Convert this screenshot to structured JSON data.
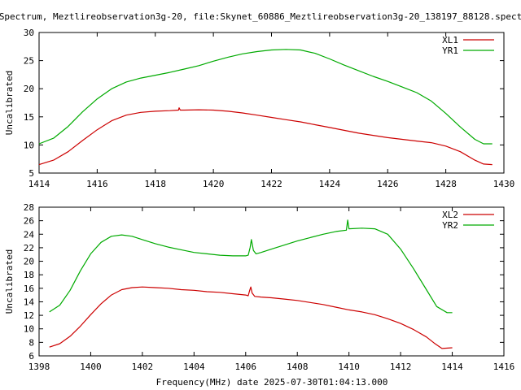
{
  "title": "Spectrum, Meztlireobservation3g-20, file:Skynet_60886_Meztlireobservation3g-20_138197_88128.spect",
  "footer": "Frequency(MHz) date 2025-07-30T01:04:13.000",
  "chart_data": [
    {
      "type": "line",
      "ylabel": "Uncalibrated",
      "xlim": [
        1414,
        1430
      ],
      "ylim": [
        5,
        30
      ],
      "xticks": [
        1414,
        1416,
        1418,
        1420,
        1422,
        1424,
        1426,
        1428,
        1430
      ],
      "yticks": [
        5,
        10,
        15,
        20,
        25,
        30
      ],
      "legend_position": "top-right",
      "series": [
        {
          "name": "XL1",
          "color": "#cc0000",
          "points": [
            [
              1414.0,
              6.5
            ],
            [
              1414.5,
              7.3
            ],
            [
              1415.0,
              8.8
            ],
            [
              1415.5,
              10.8
            ],
            [
              1416.0,
              12.7
            ],
            [
              1416.5,
              14.3
            ],
            [
              1417.0,
              15.3
            ],
            [
              1417.5,
              15.8
            ],
            [
              1418.0,
              16.0
            ],
            [
              1418.5,
              16.1
            ],
            [
              1418.8,
              16.2
            ],
            [
              1418.82,
              16.6
            ],
            [
              1418.86,
              16.2
            ],
            [
              1419.0,
              16.2
            ],
            [
              1419.5,
              16.25
            ],
            [
              1420.0,
              16.2
            ],
            [
              1420.5,
              16.0
            ],
            [
              1421.0,
              15.7
            ],
            [
              1421.5,
              15.3
            ],
            [
              1422.0,
              14.9
            ],
            [
              1422.5,
              14.5
            ],
            [
              1423.0,
              14.1
            ],
            [
              1423.5,
              13.6
            ],
            [
              1424.0,
              13.1
            ],
            [
              1424.5,
              12.6
            ],
            [
              1425.0,
              12.1
            ],
            [
              1425.5,
              11.7
            ],
            [
              1426.0,
              11.3
            ],
            [
              1426.5,
              11.0
            ],
            [
              1427.0,
              10.7
            ],
            [
              1427.5,
              10.4
            ],
            [
              1428.0,
              9.8
            ],
            [
              1428.5,
              8.8
            ],
            [
              1429.0,
              7.3
            ],
            [
              1429.3,
              6.6
            ],
            [
              1429.6,
              6.5
            ]
          ]
        },
        {
          "name": "YR1",
          "color": "#00aa00",
          "points": [
            [
              1414.0,
              10.2
            ],
            [
              1414.5,
              11.2
            ],
            [
              1415.0,
              13.3
            ],
            [
              1415.5,
              15.9
            ],
            [
              1416.0,
              18.2
            ],
            [
              1416.5,
              20.0
            ],
            [
              1417.0,
              21.2
            ],
            [
              1417.5,
              21.9
            ],
            [
              1418.0,
              22.4
            ],
            [
              1418.5,
              22.9
            ],
            [
              1419.0,
              23.5
            ],
            [
              1419.5,
              24.1
            ],
            [
              1420.0,
              24.9
            ],
            [
              1420.5,
              25.6
            ],
            [
              1421.0,
              26.2
            ],
            [
              1421.5,
              26.6
            ],
            [
              1422.0,
              26.9
            ],
            [
              1422.5,
              27.0
            ],
            [
              1423.0,
              26.9
            ],
            [
              1423.5,
              26.3
            ],
            [
              1424.0,
              25.3
            ],
            [
              1424.5,
              24.2
            ],
            [
              1425.0,
              23.2
            ],
            [
              1425.5,
              22.2
            ],
            [
              1426.0,
              21.3
            ],
            [
              1426.5,
              20.3
            ],
            [
              1427.0,
              19.3
            ],
            [
              1427.5,
              17.8
            ],
            [
              1428.0,
              15.6
            ],
            [
              1428.5,
              13.2
            ],
            [
              1429.0,
              11.0
            ],
            [
              1429.3,
              10.2
            ],
            [
              1429.6,
              10.2
            ]
          ]
        }
      ]
    },
    {
      "type": "line",
      "ylabel": "Uncalibrated",
      "xlabel": "Frequency(MHz) date 2025-07-30T01:04:13.000",
      "xlim": [
        1398,
        1416
      ],
      "ylim": [
        6,
        28
      ],
      "xticks": [
        1398,
        1400,
        1402,
        1404,
        1406,
        1408,
        1410,
        1412,
        1414,
        1416
      ],
      "yticks": [
        6,
        8,
        10,
        12,
        14,
        16,
        18,
        20,
        22,
        24,
        26,
        28
      ],
      "legend_position": "top-right",
      "series": [
        {
          "name": "XL2",
          "color": "#cc0000",
          "points": [
            [
              1398.4,
              7.3
            ],
            [
              1398.8,
              7.8
            ],
            [
              1399.2,
              8.9
            ],
            [
              1399.6,
              10.4
            ],
            [
              1400.0,
              12.1
            ],
            [
              1400.4,
              13.7
            ],
            [
              1400.8,
              15.0
            ],
            [
              1401.2,
              15.8
            ],
            [
              1401.6,
              16.1
            ],
            [
              1402.0,
              16.2
            ],
            [
              1402.5,
              16.1
            ],
            [
              1403.0,
              16.0
            ],
            [
              1403.5,
              15.8
            ],
            [
              1404.0,
              15.7
            ],
            [
              1404.5,
              15.5
            ],
            [
              1405.0,
              15.4
            ],
            [
              1405.5,
              15.2
            ],
            [
              1406.0,
              15.0
            ],
            [
              1406.1,
              14.9
            ],
            [
              1406.15,
              15.6
            ],
            [
              1406.2,
              16.2
            ],
            [
              1406.25,
              15.3
            ],
            [
              1406.35,
              14.8
            ],
            [
              1406.6,
              14.7
            ],
            [
              1407.0,
              14.6
            ],
            [
              1407.5,
              14.4
            ],
            [
              1408.0,
              14.2
            ],
            [
              1408.5,
              13.9
            ],
            [
              1409.0,
              13.6
            ],
            [
              1409.5,
              13.2
            ],
            [
              1410.0,
              12.8
            ],
            [
              1410.5,
              12.5
            ],
            [
              1411.0,
              12.1
            ],
            [
              1411.5,
              11.5
            ],
            [
              1412.0,
              10.8
            ],
            [
              1412.5,
              9.9
            ],
            [
              1413.0,
              8.8
            ],
            [
              1413.3,
              7.9
            ],
            [
              1413.6,
              7.1
            ],
            [
              1414.0,
              7.2
            ]
          ]
        },
        {
          "name": "YR2",
          "color": "#00aa00",
          "points": [
            [
              1398.4,
              12.5
            ],
            [
              1398.8,
              13.5
            ],
            [
              1399.2,
              15.7
            ],
            [
              1399.6,
              18.6
            ],
            [
              1400.0,
              21.1
            ],
            [
              1400.4,
              22.8
            ],
            [
              1400.8,
              23.7
            ],
            [
              1401.2,
              23.9
            ],
            [
              1401.6,
              23.7
            ],
            [
              1402.0,
              23.2
            ],
            [
              1402.5,
              22.6
            ],
            [
              1403.0,
              22.1
            ],
            [
              1403.5,
              21.7
            ],
            [
              1404.0,
              21.3
            ],
            [
              1404.5,
              21.1
            ],
            [
              1405.0,
              20.9
            ],
            [
              1405.5,
              20.8
            ],
            [
              1406.0,
              20.8
            ],
            [
              1406.1,
              20.9
            ],
            [
              1406.17,
              22.0
            ],
            [
              1406.22,
              23.2
            ],
            [
              1406.3,
              21.6
            ],
            [
              1406.4,
              21.1
            ],
            [
              1406.6,
              21.3
            ],
            [
              1407.0,
              21.8
            ],
            [
              1407.5,
              22.4
            ],
            [
              1408.0,
              23.0
            ],
            [
              1408.5,
              23.5
            ],
            [
              1409.0,
              24.0
            ],
            [
              1409.5,
              24.4
            ],
            [
              1409.9,
              24.6
            ],
            [
              1409.95,
              26.1
            ],
            [
              1410.0,
              24.8
            ],
            [
              1410.5,
              24.9
            ],
            [
              1411.0,
              24.8
            ],
            [
              1411.5,
              24.0
            ],
            [
              1412.0,
              21.8
            ],
            [
              1412.5,
              18.9
            ],
            [
              1413.0,
              15.8
            ],
            [
              1413.4,
              13.3
            ],
            [
              1413.8,
              12.4
            ],
            [
              1414.0,
              12.4
            ]
          ]
        }
      ]
    }
  ]
}
